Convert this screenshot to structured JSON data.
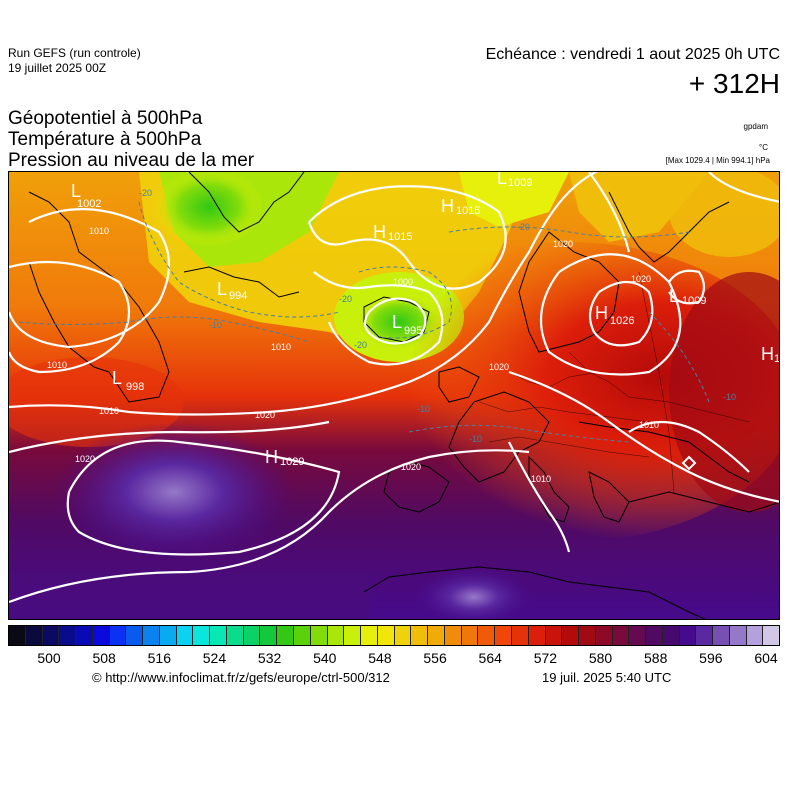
{
  "header": {
    "run_name": "Run GEFS (run controle)",
    "run_date": "19 juillet 2025 00Z",
    "valid_time": "Echéance : vendredi 1 aout 2025 0h UTC",
    "lead_time": "+ 312H"
  },
  "parameters": {
    "geopotential": "Géopotentiel à 500hPa",
    "temperature": "Température à 500hPa",
    "pressure": "Pression au niveau de la mer"
  },
  "units": {
    "geopotential": "gpdam",
    "temperature": "°C",
    "maxmin": "[Max 1029.4 | Min 994.1] hPa"
  },
  "map": {
    "pressure_centers": [
      {
        "type": "L",
        "value": "1002"
      },
      {
        "type": "H",
        "value": "1015"
      },
      {
        "type": "H",
        "value": "1015"
      },
      {
        "type": "L",
        "value": "1009"
      },
      {
        "type": "L",
        "value": "994"
      },
      {
        "type": "L",
        "value": "995"
      },
      {
        "type": "H",
        "value": "1026"
      },
      {
        "type": "L",
        "value": "1009"
      },
      {
        "type": "L",
        "value": "998"
      },
      {
        "type": "H",
        "value": "1029"
      },
      {
        "type": "H",
        "value": "1"
      }
    ],
    "isobar_labels": [
      "1010",
      "1010",
      "1010",
      "1010",
      "1020",
      "1020",
      "1020",
      "1020",
      "1020",
      "1020",
      "1000",
      "1010",
      "1010"
    ],
    "temperature_labels": [
      "-20",
      "-20",
      "-20",
      "-10",
      "-10",
      "-10",
      "-20",
      "-10"
    ]
  },
  "colorbar": {
    "colors": [
      "#0a0a14",
      "#0a0a3c",
      "#0a0a64",
      "#0a0a8c",
      "#0a0ab4",
      "#0a0adc",
      "#0a32f0",
      "#0a5af0",
      "#0a82f0",
      "#0aaaf0",
      "#0ad2f0",
      "#0ae6dc",
      "#0ae6b4",
      "#0adc8c",
      "#0ad264",
      "#14c83c",
      "#32c814",
      "#5ad20a",
      "#82dc0a",
      "#aae60a",
      "#c8f00a",
      "#e6f00a",
      "#f0e60a",
      "#f0d20a",
      "#f0be0a",
      "#f0aa0a",
      "#f08c0a",
      "#f0780a",
      "#f05a0a",
      "#f0460a",
      "#e6320a",
      "#dc1e0a",
      "#c8140a",
      "#b40a0a",
      "#a00a14",
      "#8c0a28",
      "#780a3c",
      "#640a50",
      "#500a64",
      "#460a6e",
      "#460a8c",
      "#5a28a0",
      "#7850b4",
      "#9678c8",
      "#b4a0dc",
      "#d2c8e6"
    ],
    "ticks": [
      "500",
      "508",
      "516",
      "524",
      "532",
      "540",
      "548",
      "556",
      "564",
      "572",
      "580",
      "588",
      "596",
      "604"
    ]
  },
  "footer": {
    "copyright": "© http://www.infoclimat.fr/z/gefs/europe/ctrl-500/312",
    "generated": "19 juil. 2025  5:40 UTC"
  }
}
